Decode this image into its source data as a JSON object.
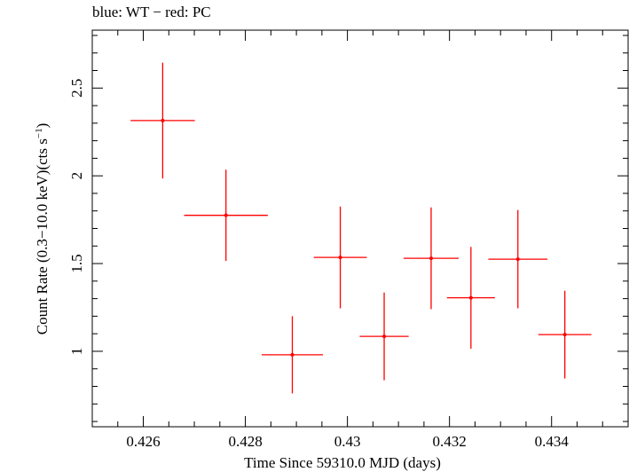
{
  "chart_data": {
    "type": "scatter",
    "title": "blue: WT − red: PC",
    "xlabel": "Time Since 59310.0 MJD (days)",
    "ylabel_main": "Count Rate (0.3−10.0 keV)(cts s",
    "ylabel_sup": "−1",
    "ylabel_end": ")",
    "xlim": [
      0.425,
      0.4355
    ],
    "ylim": [
      0.57,
      2.83
    ],
    "x_ticks": [
      0.426,
      0.428,
      0.43,
      0.432,
      0.434
    ],
    "x_tick_labels": [
      "0.426",
      "0.428",
      "0.43",
      "0.432",
      "0.434"
    ],
    "y_ticks": [
      1,
      1.5,
      2,
      2.5
    ],
    "y_tick_labels": [
      "1",
      "1.5",
      "2",
      "2.5"
    ],
    "grid": false,
    "series": [
      {
        "color": "#ff0000",
        "points": [
          {
            "x": 0.42638,
            "y": 2.315,
            "xerr": 0.00063,
            "yerr_lo": 0.33,
            "yerr_hi": 0.33
          },
          {
            "x": 0.42762,
            "y": 1.775,
            "xerr": 0.00082,
            "yerr_lo": 0.26,
            "yerr_hi": 0.26
          },
          {
            "x": 0.42892,
            "y": 0.98,
            "xerr": 0.0006,
            "yerr_lo": 0.22,
            "yerr_hi": 0.22
          },
          {
            "x": 0.42986,
            "y": 1.535,
            "xerr": 0.00052,
            "yerr_lo": 0.29,
            "yerr_hi": 0.29
          },
          {
            "x": 0.43072,
            "y": 1.085,
            "xerr": 0.00048,
            "yerr_lo": 0.25,
            "yerr_hi": 0.25
          },
          {
            "x": 0.43164,
            "y": 1.53,
            "xerr": 0.00054,
            "yerr_lo": 0.29,
            "yerr_hi": 0.29
          },
          {
            "x": 0.43242,
            "y": 1.305,
            "xerr": 0.00047,
            "yerr_lo": 0.29,
            "yerr_hi": 0.29
          },
          {
            "x": 0.43334,
            "y": 1.525,
            "xerr": 0.00058,
            "yerr_lo": 0.28,
            "yerr_hi": 0.28
          },
          {
            "x": 0.43426,
            "y": 1.095,
            "xerr": 0.00052,
            "yerr_lo": 0.25,
            "yerr_hi": 0.25
          }
        ]
      }
    ]
  }
}
